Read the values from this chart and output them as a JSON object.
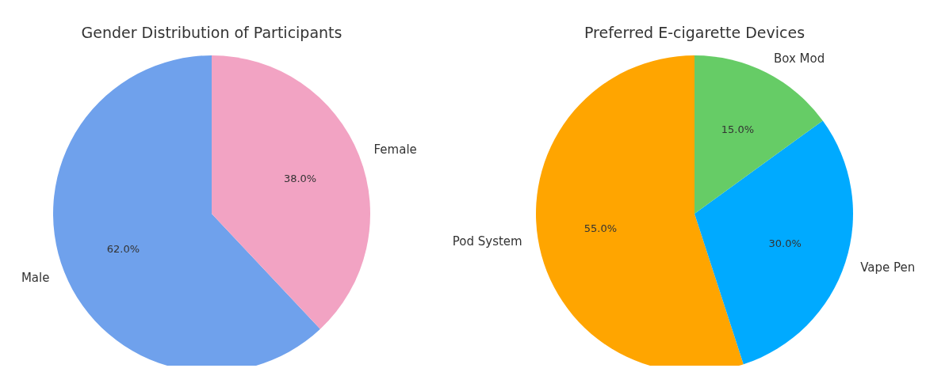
{
  "chart_data": [
    {
      "type": "pie",
      "title": "Gender Distribution of Participants",
      "categories": [
        "Male",
        "Female"
      ],
      "values": [
        62,
        38
      ],
      "colors": [
        "#6fa1ec",
        "#f2a3c3"
      ],
      "value_labels": [
        "62.0%",
        "38.0%"
      ]
    },
    {
      "type": "pie",
      "title": "Preferred E-cigarette Devices",
      "categories": [
        "Pod System",
        "Vape Pen",
        "Box Mod"
      ],
      "values": [
        55,
        30,
        15
      ],
      "colors": [
        "#ffa500",
        "#00aaff",
        "#66cc66"
      ],
      "value_labels": [
        "55.0%",
        "30.0%",
        "15.0%"
      ]
    }
  ]
}
